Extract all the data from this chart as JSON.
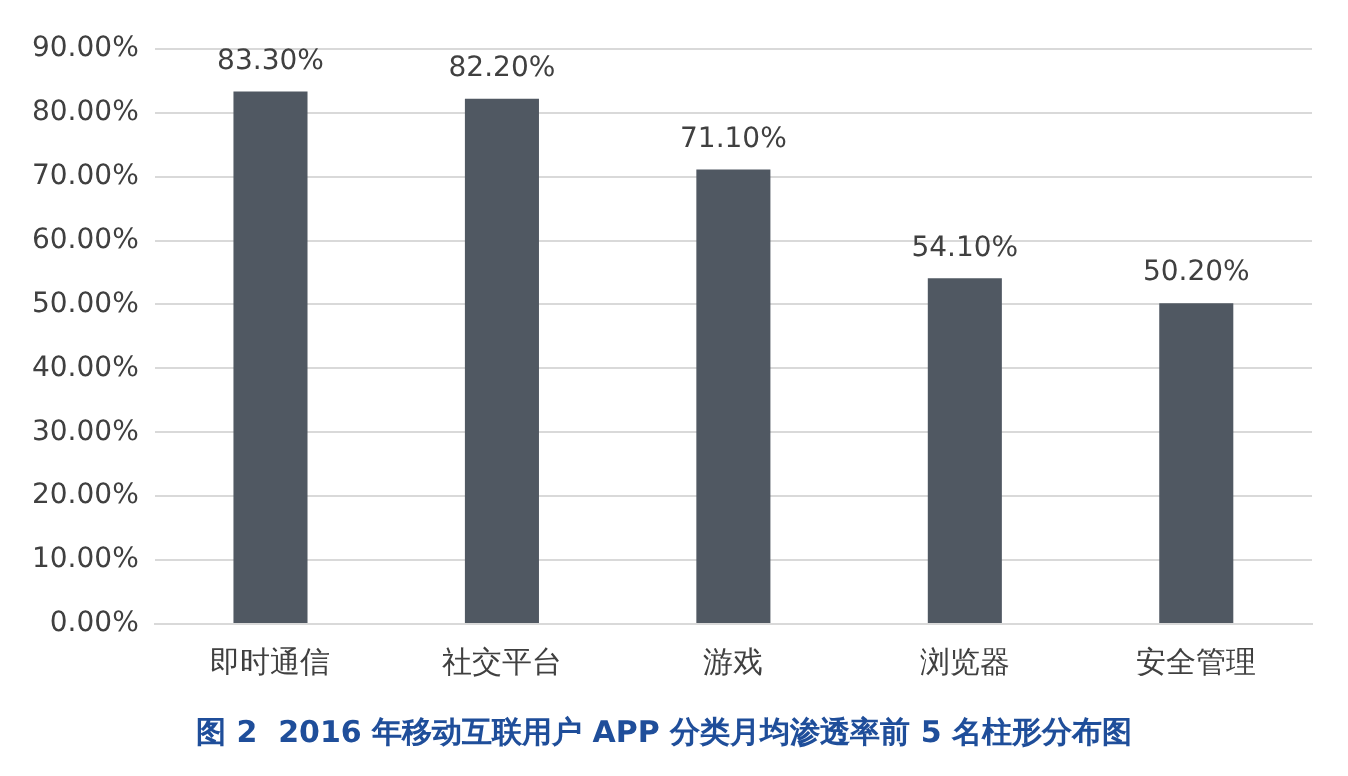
{
  "chart_data": {
    "type": "bar",
    "title": "图 2  2016 年移动互联用户 APP 分类月均渗透率前 5 名柱形分布图",
    "categories": [
      "即时通信",
      "社交平台",
      "游戏",
      "浏览器",
      "安全管理"
    ],
    "values": [
      83.3,
      82.2,
      71.1,
      54.1,
      50.2
    ],
    "value_labels": [
      "83.30%",
      "82.20%",
      "71.10%",
      "54.10%",
      "50.20%"
    ],
    "color": "#505862",
    "ylim": [
      0,
      90
    ],
    "yticks": [
      {
        "value": 0,
        "label": "0.00%"
      },
      {
        "value": 10,
        "label": "10.00%"
      },
      {
        "value": 20,
        "label": "20.00%"
      },
      {
        "value": 30,
        "label": "30.00%"
      },
      {
        "value": 40,
        "label": "40.00%"
      },
      {
        "value": 50,
        "label": "50.00%"
      },
      {
        "value": 60,
        "label": "60.00%"
      },
      {
        "value": 70,
        "label": "70.00%"
      },
      {
        "value": 80,
        "label": "80.00%"
      },
      {
        "value": 90,
        "label": "90.00%"
      }
    ],
    "grid": "y"
  }
}
